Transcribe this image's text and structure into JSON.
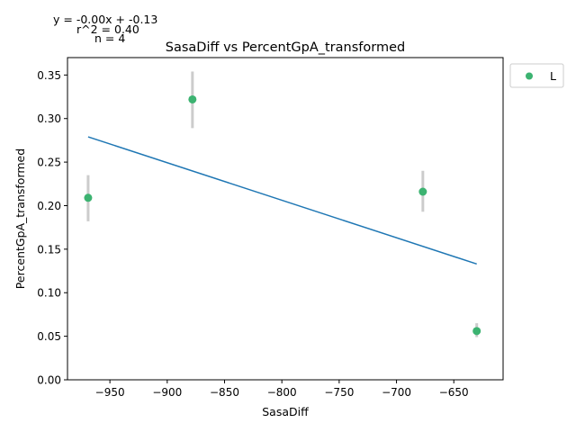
{
  "chart_data": {
    "type": "scatter",
    "title": "SasaDiff vs PercentGpA_transformed",
    "xlabel": "SasaDiff",
    "ylabel": "PercentGpA_transformed",
    "xlim": [
      -987,
      -607
    ],
    "ylim": [
      0,
      0.37
    ],
    "xticks": [
      -950,
      -900,
      -850,
      -800,
      -750,
      -700,
      -650
    ],
    "xtick_labels": [
      "−950",
      "−900",
      "−850",
      "−800",
      "−750",
      "−700",
      "−650"
    ],
    "yticks": [
      0.0,
      0.05,
      0.1,
      0.15,
      0.2,
      0.25,
      0.3,
      0.35
    ],
    "ytick_labels": [
      "0.00",
      "0.05",
      "0.10",
      "0.15",
      "0.20",
      "0.25",
      "0.30",
      "0.35"
    ],
    "grid": false,
    "legend": {
      "position": "outside-right",
      "entries": [
        "L"
      ]
    },
    "series": [
      {
        "name": "L",
        "color": "#3cb371",
        "points": [
          {
            "x": -969,
            "y": 0.209,
            "err_low": 0.182,
            "err_high": 0.235
          },
          {
            "x": -878,
            "y": 0.322,
            "err_low": 0.289,
            "err_high": 0.354
          },
          {
            "x": -677,
            "y": 0.216,
            "err_low": 0.193,
            "err_high": 0.24
          },
          {
            "x": -630,
            "y": 0.056,
            "err_low": 0.049,
            "err_high": 0.065
          }
        ]
      }
    ],
    "fit_line": {
      "color": "#1f77b4",
      "x": [
        -969,
        -630
      ],
      "y": [
        0.279,
        0.133
      ]
    },
    "annotations": [
      "y = -0.00x + -0.13",
      "r^2 = 0.40",
      "n = 4"
    ]
  }
}
